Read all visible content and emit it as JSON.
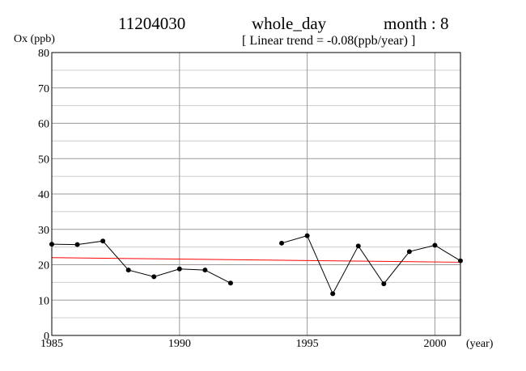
{
  "header": {
    "station": "11204030",
    "period": "whole_day",
    "month": "month : 8",
    "trend": "[ Linear trend = -0.08(ppb/year) ]"
  },
  "chart_data": {
    "type": "line",
    "ylabel": "Ox (ppb)",
    "xlabel": "(year)",
    "xlim": [
      1985,
      2001
    ],
    "ylim": [
      0,
      80
    ],
    "x_ticks": [
      1985,
      1990,
      1995,
      2000
    ],
    "y_ticks": [
      0,
      10,
      20,
      30,
      40,
      50,
      60,
      70,
      80
    ],
    "grid": true,
    "series": [
      {
        "color": "#000000",
        "x": [
          1985,
          1986,
          1987,
          1988,
          1989,
          1990,
          1991,
          1992,
          1993,
          1994,
          1995,
          1996,
          1997,
          1998,
          1999,
          2000,
          2001
        ],
        "y": [
          25.8,
          25.7,
          26.7,
          18.5,
          16.6,
          18.8,
          18.5,
          14.8,
          null,
          26.1,
          28.2,
          11.8,
          25.3,
          14.6,
          23.7,
          25.5,
          21.1
        ]
      }
    ],
    "trend_line": {
      "color": "#ff0000",
      "x": [
        1985,
        2001
      ],
      "y": [
        22.0,
        20.7
      ]
    }
  }
}
